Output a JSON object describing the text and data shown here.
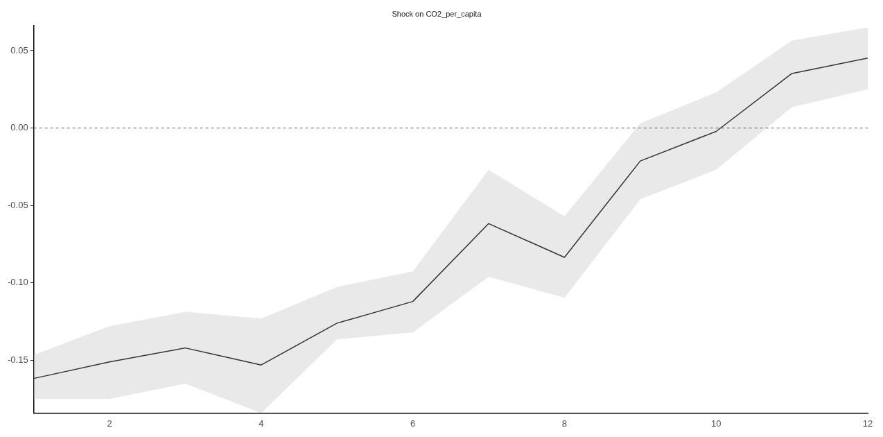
{
  "chart_data": {
    "type": "line",
    "title": "Shock on CO2_per_capita",
    "x": [
      1,
      2,
      3,
      4,
      5,
      6,
      7,
      8,
      9,
      10,
      11,
      12
    ],
    "series": [
      {
        "color": "#333333",
        "values": [
          -0.1617,
          -0.151,
          -0.142,
          -0.153,
          -0.126,
          -0.112,
          -0.0617,
          -0.0835,
          -0.0213,
          -0.0022,
          0.0352,
          0.0452
        ],
        "lower": [
          -0.175,
          -0.175,
          -0.165,
          -0.184,
          -0.1365,
          -0.132,
          -0.096,
          -0.1096,
          -0.046,
          -0.027,
          0.0135,
          0.025
        ],
        "upper": [
          -0.1465,
          -0.128,
          -0.1187,
          -0.123,
          -0.1026,
          -0.0926,
          -0.027,
          -0.057,
          0.003,
          0.023,
          0.0565,
          0.065
        ]
      }
    ],
    "xlim": [
      1,
      12
    ],
    "xticks": [
      2,
      4,
      6,
      8,
      10,
      12
    ],
    "ylim": [
      -0.184,
      0.066
    ],
    "yticks": [
      {
        "value": -0.15,
        "label": "-0.15"
      },
      {
        "value": -0.1,
        "label": "-0.10"
      },
      {
        "value": -0.05,
        "label": "-0.05"
      },
      {
        "value": 0,
        "label": "0.00"
      },
      {
        "value": 0.05,
        "label": "0.05"
      }
    ],
    "ref_lines": [
      {
        "axis": "y",
        "value": 0,
        "color": "#555555",
        "line_style": "dashed"
      }
    ],
    "grid": false,
    "legend": false,
    "marker": "none",
    "line_style": "solid"
  }
}
